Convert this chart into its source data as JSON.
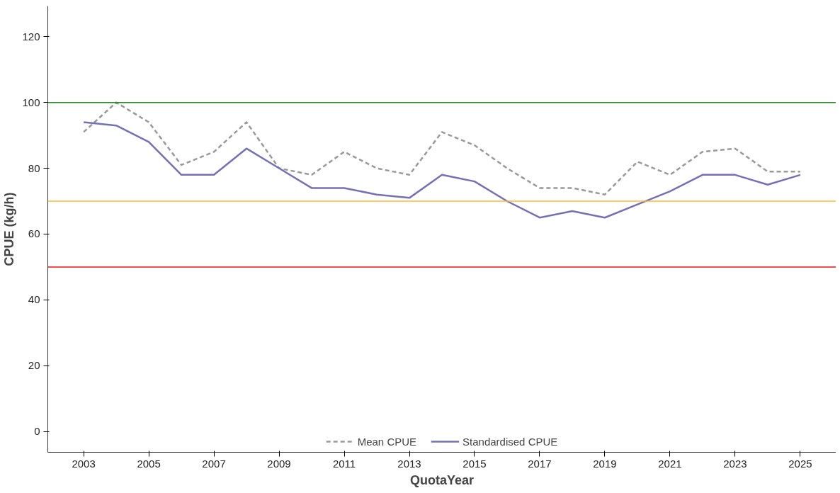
{
  "chart_data": {
    "type": "line",
    "xlabel": "QuotaYear",
    "ylabel": "CPUE (kg/h)",
    "x": [
      2003,
      2004,
      2005,
      2006,
      2007,
      2008,
      2009,
      2010,
      2011,
      2012,
      2013,
      2014,
      2015,
      2016,
      2017,
      2018,
      2019,
      2020,
      2021,
      2022,
      2023,
      2024,
      2025
    ],
    "series": [
      {
        "name": "Mean CPUE",
        "color": "#999999",
        "line_style": "dashed",
        "values": [
          91,
          100,
          94,
          81,
          85,
          94,
          80,
          78,
          85,
          80,
          78,
          91,
          87,
          80,
          74,
          74,
          72,
          82,
          78,
          85,
          86,
          79,
          79
        ]
      },
      {
        "name": "Standardised CPUE",
        "color": "#7570b3",
        "line_style": "solid",
        "values": [
          94,
          93,
          88,
          78,
          78,
          86,
          80,
          74,
          74,
          72,
          71,
          78,
          76,
          70,
          65,
          67,
          65,
          69,
          73,
          78,
          78,
          75,
          78
        ]
      }
    ],
    "xlim": [
      2001.9,
      2026.1
    ],
    "ylim": [
      -6.3,
      129.3
    ],
    "xticks": [
      2003,
      2005,
      2007,
      2009,
      2011,
      2013,
      2015,
      2017,
      2019,
      2021,
      2023,
      2025
    ],
    "yticks": [
      0,
      20,
      40,
      60,
      80,
      100,
      120
    ],
    "ref_lines": [
      {
        "axis": "y",
        "value": 100,
        "color": "#228b22"
      },
      {
        "axis": "y",
        "value": 70,
        "color": "#ffb733"
      },
      {
        "axis": "y",
        "value": 50,
        "color": "#ee1111"
      }
    ],
    "grid": false,
    "legend": "bottom",
    "marker": "none"
  }
}
